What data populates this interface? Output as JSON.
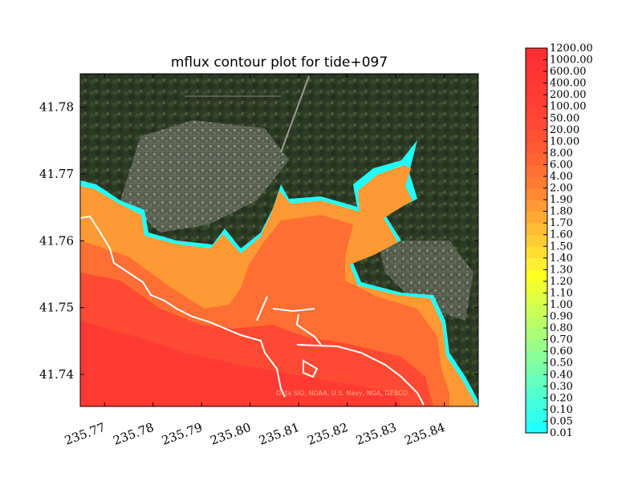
{
  "chart_data": {
    "type": "heatmap",
    "title": "mflux contour plot for tide+097",
    "xlabel": "",
    "ylabel": "",
    "xlim": [
      235.765,
      235.847
    ],
    "ylim": [
      41.7352,
      41.785
    ],
    "x_ticks": [
      "235.77",
      "235.78",
      "235.79",
      "235.80",
      "235.81",
      "235.82",
      "235.83",
      "235.84"
    ],
    "x_tick_values": [
      235.77,
      235.78,
      235.79,
      235.8,
      235.81,
      235.82,
      235.83,
      235.84
    ],
    "y_ticks": [
      "41.74",
      "41.75",
      "41.76",
      "41.77",
      "41.78"
    ],
    "y_tick_values": [
      41.74,
      41.75,
      41.76,
      41.77,
      41.78
    ],
    "colorbar": {
      "labels": [
        "0.01",
        "0.05",
        "0.10",
        "0.20",
        "0.30",
        "0.40",
        "0.50",
        "0.60",
        "0.70",
        "0.80",
        "0.90",
        "1.00",
        "1.10",
        "1.20",
        "1.30",
        "1.40",
        "1.50",
        "1.60",
        "1.70",
        "1.80",
        "1.90",
        "2.00",
        "4.00",
        "6.00",
        "8.00",
        "10.00",
        "20.00",
        "50.00",
        "100.00",
        "200.00",
        "400.00",
        "600.00",
        "1000.00",
        "1200.00"
      ],
      "colors": [
        "#22ffff",
        "#33ffee",
        "#44ffdd",
        "#55ffcc",
        "#66ffbb",
        "#77ffaa",
        "#88ff99",
        "#99ff88",
        "#aaff77",
        "#bbff66",
        "#ccff55",
        "#ddff44",
        "#eeff33",
        "#ffff22",
        "#ffee33",
        "#ffdd33",
        "#ffcc33",
        "#ffbb33",
        "#ffaa33",
        "#ff9933",
        "#ff8833",
        "#ff7a33",
        "#ff6e33",
        "#ff6433",
        "#ff5a33",
        "#ff5033",
        "#ff4a33",
        "#ff4433",
        "#ff3e33",
        "#ff3a33",
        "#ff3633",
        "#ff3233",
        "#ff2e33"
      ]
    },
    "attribution": "Data SIO, NOAA, U.S. Navy, NGA, GEBCO",
    "background": "satellite imagery",
    "grid": false,
    "legend": "colorbar-right"
  }
}
